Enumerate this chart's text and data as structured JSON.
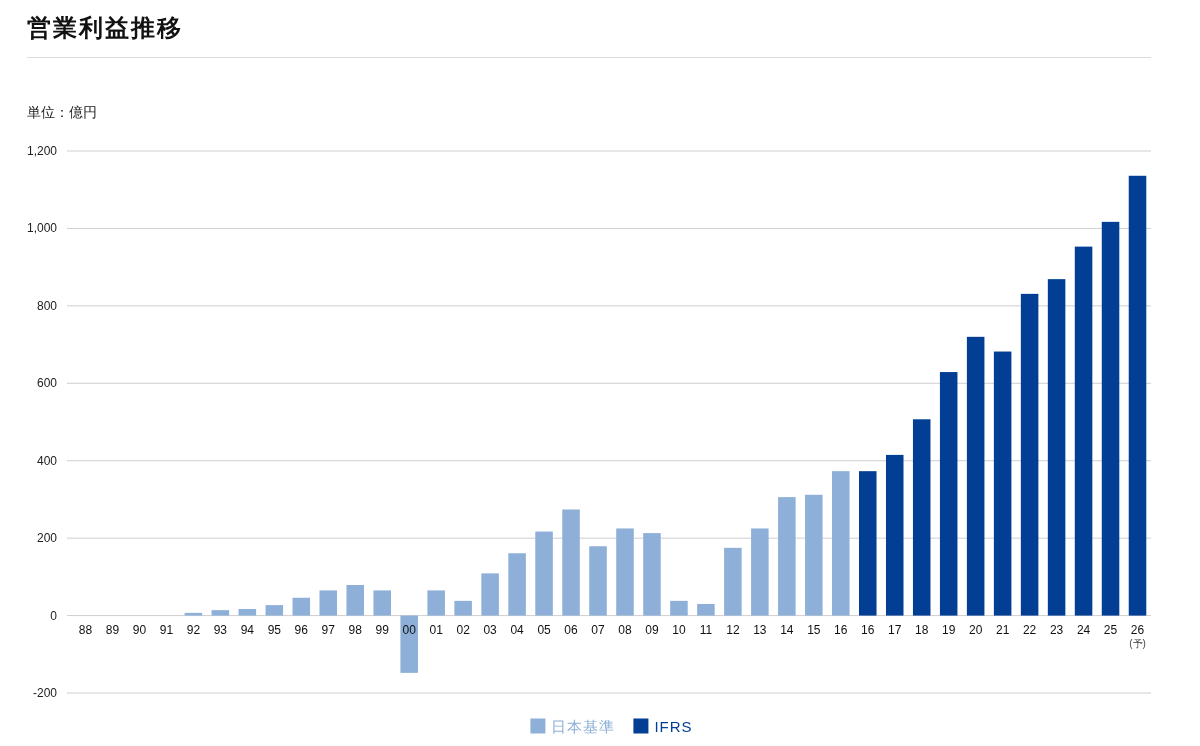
{
  "chart_data": {
    "type": "bar",
    "title": "営業利益推移",
    "ylabel": "単位：億円",
    "categories": [
      "88",
      "89",
      "90",
      "91",
      "92",
      "93",
      "94",
      "95",
      "96",
      "97",
      "98",
      "99",
      "00",
      "01",
      "02",
      "03",
      "04",
      "05",
      "06",
      "07",
      "08",
      "09",
      "10",
      "11",
      "12",
      "13",
      "14",
      "15",
      "16",
      "16",
      "17",
      "18",
      "19",
      "20",
      "21",
      "22",
      "23",
      "24",
      "25",
      "26\n(予)"
    ],
    "series": [
      {
        "name": "日本基準",
        "color": "#8dafd8",
        "values": [
          null,
          null,
          null,
          null,
          7,
          14,
          17,
          27,
          46,
          65,
          79,
          65,
          -148,
          65,
          38,
          109,
          161,
          217,
          274,
          179,
          225,
          213,
          38,
          30,
          175,
          225,
          306,
          312,
          373,
          null,
          null,
          null,
          null,
          null,
          null,
          null,
          null,
          null,
          null,
          null
        ]
      },
      {
        "name": "IFRS",
        "color": "#023e94",
        "values": [
          null,
          null,
          null,
          null,
          null,
          null,
          null,
          null,
          null,
          null,
          null,
          null,
          null,
          null,
          null,
          null,
          null,
          null,
          null,
          null,
          null,
          null,
          null,
          null,
          null,
          null,
          null,
          null,
          null,
          373,
          415,
          507,
          629,
          720,
          682,
          831,
          869,
          953,
          1017,
          1136
        ]
      }
    ],
    "ylim": [
      -200,
      1200
    ],
    "yticks": [
      -200,
      0,
      200,
      400,
      600,
      800,
      {
        "value": 1000,
        "label": "1,000"
      },
      {
        "value": 1200,
        "label": "1,200"
      }
    ],
    "grid": "y",
    "legend": "bottom"
  }
}
